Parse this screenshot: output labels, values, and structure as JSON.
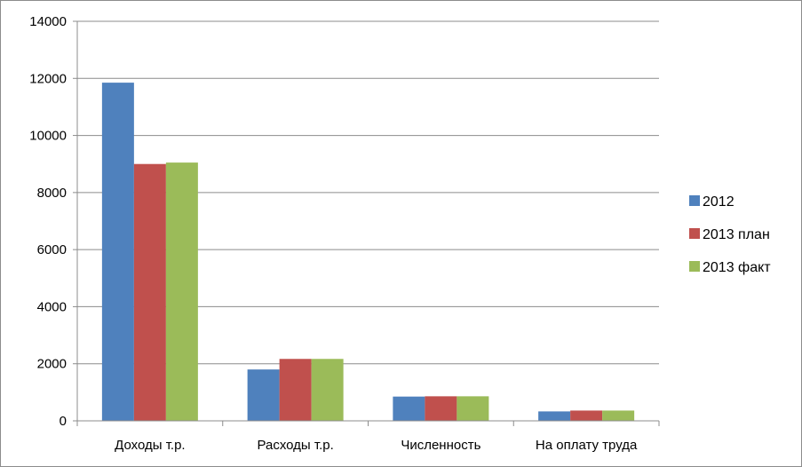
{
  "chart_data": {
    "type": "bar",
    "title": "",
    "xlabel": "",
    "ylabel": "",
    "ylim": [
      0,
      14000
    ],
    "yticks": [
      0,
      2000,
      4000,
      6000,
      8000,
      10000,
      12000,
      14000
    ],
    "grid": true,
    "legend_position": "right",
    "categories": [
      "Доходы т.р.",
      "Расходы т.р.",
      "Численность",
      "На оплату труда"
    ],
    "series": [
      {
        "name": "2012",
        "color": "#4f81bd",
        "values": [
          11850,
          1800,
          850,
          330
        ]
      },
      {
        "name": "2013 план",
        "color": "#c0504d",
        "values": [
          9000,
          2170,
          860,
          360
        ]
      },
      {
        "name": "2013 факт",
        "color": "#9bbb59",
        "values": [
          9050,
          2170,
          860,
          360
        ]
      }
    ]
  }
}
